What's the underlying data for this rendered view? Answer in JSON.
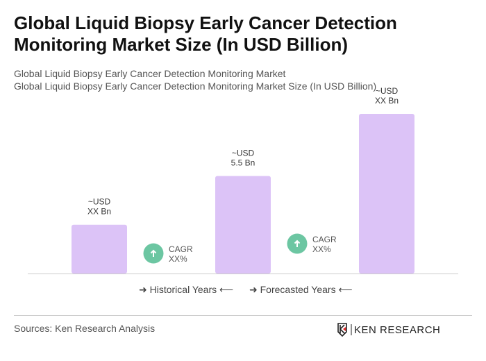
{
  "title": "Global Liquid Biopsy Early Cancer Detection Monitoring Market Size (In USD Billion)",
  "subtitle1": "Global Liquid Biopsy Early Cancer Detection Monitoring Market",
  "subtitle2": "Global Liquid Biopsy Early Cancer Detection Monitoring Market Size (In USD Billion)",
  "chart_data": {
    "type": "bar",
    "categories": [
      "",
      "",
      ""
    ],
    "values": [
      2.75,
      5.5,
      9.0
    ],
    "data_labels": [
      [
        "~USD",
        "XX Bn"
      ],
      [
        "~USD",
        "5.5 Bn"
      ],
      [
        "~USD",
        "XX Bn"
      ]
    ],
    "cagr": [
      [
        "CAGR",
        "XX%"
      ],
      [
        "CAGR",
        "XX%"
      ]
    ],
    "bar_color": "#dcc3f7",
    "cagr_color": "#6cc6a2",
    "grid": false
  },
  "legend": {
    "historical": "Historical Years",
    "forecast": "Forecasted Years"
  },
  "sources": "Sources: Ken Research Analysis",
  "logo_text": "KEN RESEARCH"
}
